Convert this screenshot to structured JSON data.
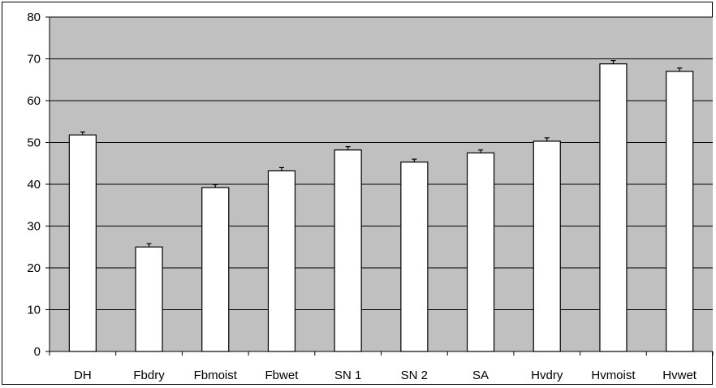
{
  "chart_data": {
    "type": "bar",
    "categories": [
      "DH",
      "Fbdry",
      "Fbmoist",
      "Fbwet",
      "SN 1",
      "SN 2",
      "SA",
      "Hvdry",
      "Hvmoist",
      "Hvwet"
    ],
    "series": [
      {
        "values": [
          51.8,
          25.0,
          39.2,
          43.2,
          48.2,
          45.3,
          47.5,
          50.3,
          68.8,
          67.0
        ]
      }
    ],
    "error_bars": [
      0.7,
      0.8,
      0.7,
      0.8,
      0.8,
      0.7,
      0.7,
      0.8,
      0.8,
      0.8
    ],
    "yticks": [
      "0",
      "10",
      "20",
      "30",
      "40",
      "50",
      "60",
      "70",
      "80"
    ],
    "ylim": [
      0,
      80
    ],
    "grid": true,
    "legend": "none",
    "colors": {
      "plot_background": "#c0c0c0",
      "bar_fill": "#ffffff",
      "bar_stroke": "#000000",
      "gridline": "#000000"
    }
  }
}
